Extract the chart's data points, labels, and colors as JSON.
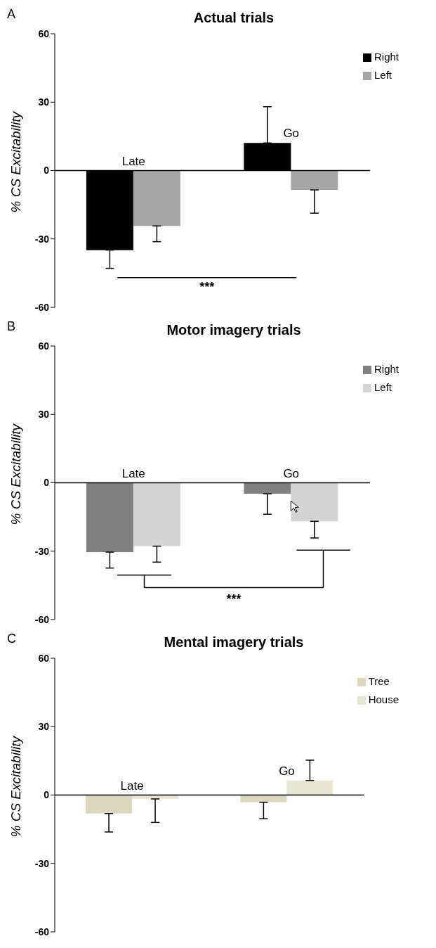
{
  "chart_data": [
    {
      "type": "bar",
      "title": "Actual trials",
      "ylabel": "% CS Excitability",
      "categories": [
        "Late",
        "Go"
      ],
      "series": [
        {
          "name": "Right",
          "color": "#000000",
          "values": [
            -34.9,
            12.1
          ],
          "errors": [
            [
              -42.9,
              -34.9
            ],
            [
              12.1,
              28.0
            ]
          ]
        },
        {
          "name": "Left",
          "color": "#a6a6a6",
          "values": [
            -24.3,
            -8.5
          ],
          "errors": [
            [
              -31.2,
              -24.3
            ],
            [
              -18.7,
              -8.5
            ]
          ]
        }
      ],
      "ylim": [
        -60,
        60
      ],
      "yticks": [
        -60,
        -30,
        0,
        30,
        60
      ],
      "legend": "top right",
      "annotations": [
        "A",
        "***"
      ]
    },
    {
      "type": "bar",
      "title": "Motor imagery trials",
      "ylabel": "% CS Excitability",
      "categories": [
        "Late",
        "Go"
      ],
      "series": [
        {
          "name": "Right",
          "color": "#808080",
          "values": [
            -30.4,
            -4.8
          ],
          "errors": [
            [
              -37.4,
              -30.4
            ],
            [
              -13.8,
              -4.8
            ]
          ]
        },
        {
          "name": "Left",
          "color": "#d4d4d4",
          "values": [
            -27.8,
            -16.9
          ],
          "errors": [
            [
              -34.8,
              -27.8
            ],
            [
              -24.2,
              -16.9
            ]
          ]
        }
      ],
      "ylim": [
        -60,
        60
      ],
      "yticks": [
        -60,
        -30,
        0,
        30,
        60
      ],
      "legend": "top right",
      "annotations": [
        "B",
        "***"
      ]
    },
    {
      "type": "bar",
      "title": "Mental imagery trials",
      "ylabel": "% CS Excitability",
      "categories": [
        "Late",
        "Go"
      ],
      "series": [
        {
          "name": "Tree",
          "color": "#ddd7c0",
          "values": [
            -8.1,
            -3.2
          ],
          "errors": [
            [
              -16.2,
              -8.1
            ],
            [
              -10.4,
              -3.2
            ]
          ]
        },
        {
          "name": "House",
          "color": "#e9e5d3",
          "values": [
            -1.7,
            6.4
          ],
          "errors": [
            [
              -12.0,
              -1.7
            ],
            [
              6.4,
              15.3
            ]
          ]
        }
      ],
      "ylim": [
        -60,
        60
      ],
      "yticks": [
        -60,
        -30,
        0,
        30,
        60
      ],
      "legend": "top right",
      "annotations": [
        "C"
      ]
    }
  ]
}
